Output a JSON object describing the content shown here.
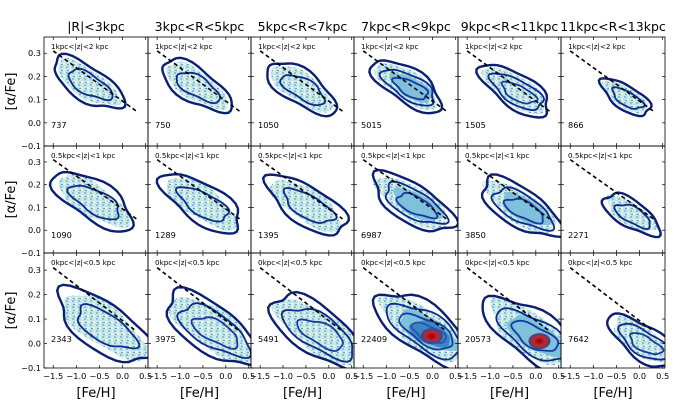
{
  "chart_data": {
    "type": "contour-density-grid",
    "title": "",
    "xlabel": "[Fe/H]",
    "ylabel": "[α/Fe]",
    "xlim": [
      -1.7,
      0.55
    ],
    "ylim": [
      -0.1,
      0.37
    ],
    "x_ticks": [
      -1.5,
      -1.0,
      -0.5,
      0.0,
      0.5
    ],
    "x_tick_labels": [
      "−1.5",
      "−1.0",
      "−0.5",
      "0.0",
      "0.5"
    ],
    "y_ticks": [
      -0.1,
      0.0,
      0.1,
      0.2,
      0.3
    ],
    "y_tick_labels": [
      "−0.1",
      "0.0",
      "0.1",
      "0.2",
      "0.3"
    ],
    "column_titles": [
      "|R|<3kpc",
      "3kpc<R<5kpc",
      "5kpc<R<7kpc",
      "7kpc<R<9kpc",
      "9kpc<R<11kpc",
      "11kpc<R<13kpc"
    ],
    "row_labels": [
      "1kpc<|z|<2 kpc",
      "0.5kpc<|z|<1 kpc",
      "0kpc<|z|<0.5 kpc"
    ],
    "counts": [
      [
        737,
        750,
        1050,
        5015,
        1505,
        866
      ],
      [
        1090,
        1289,
        1395,
        6987,
        3850,
        2271
      ],
      [
        2343,
        3975,
        5491,
        22409,
        20573,
        7642
      ]
    ],
    "reference_line": {
      "style": "dashed",
      "x": [
        -1.5,
        0.3
      ],
      "y": [
        0.31,
        0.05
      ]
    }
  }
}
